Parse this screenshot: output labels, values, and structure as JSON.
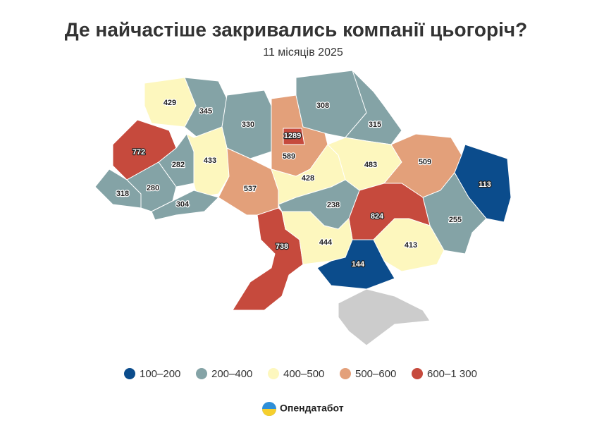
{
  "title": "Де найчастіше закривались компанії цьогоріч?",
  "subtitle": "11 місяців 2025",
  "legend": [
    {
      "label": "100–200",
      "min": 100,
      "max": 200,
      "color": "#0b4c8c"
    },
    {
      "label": "200–400",
      "min": 200,
      "max": 400,
      "color": "#84a3a6"
    },
    {
      "label": "400–500",
      "min": 400,
      "max": 500,
      "color": "#fdf7be"
    },
    {
      "label": "500–600",
      "min": 500,
      "max": 600,
      "color": "#e3a07a"
    },
    {
      "label": "600–1 300",
      "min": 600,
      "max": 1300,
      "color": "#c64a3d"
    }
  ],
  "regions": [
    {
      "value": 429
    },
    {
      "value": 345
    },
    {
      "value": 330
    },
    {
      "value": 589
    },
    {
      "value": 308
    },
    {
      "value": 315
    },
    {
      "value": 772
    },
    {
      "value": 282
    },
    {
      "value": 433
    },
    {
      "value": 318
    },
    {
      "value": 280
    },
    {
      "value": 304
    },
    {
      "value": 537
    },
    {
      "value": 428
    },
    {
      "value": 483
    },
    {
      "value": 509
    },
    {
      "value": 113
    },
    {
      "value": 255
    },
    {
      "value": 824
    },
    {
      "value": 238
    },
    {
      "value": 738
    },
    {
      "value": 444
    },
    {
      "value": 413
    },
    {
      "value": 144
    },
    {
      "value": 1289
    }
  ],
  "brand": "Опендатабот"
}
